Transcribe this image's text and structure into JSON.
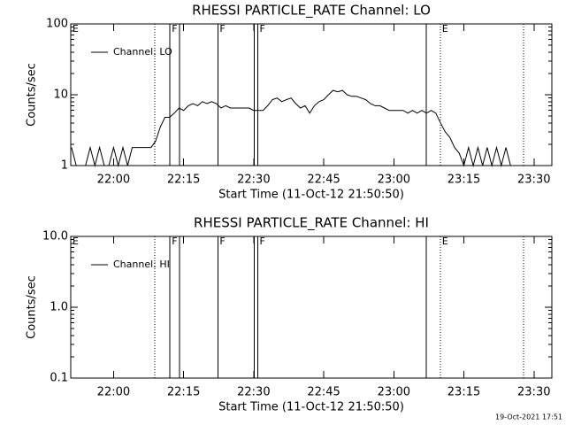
{
  "chart_data": [
    {
      "type": "line",
      "title": "RHESSI PARTICLE_RATE Channel: LO",
      "x_label": "Start Time (11-Oct-12 21:50:50)",
      "y_label": "Counts/sec",
      "log_y": true,
      "legend": "top-left",
      "xlim": [
        "21:50:50",
        "23:33:50"
      ],
      "xticks": [
        "22:00",
        "22:15",
        "22:30",
        "22:45",
        "23:00",
        "23:15",
        "23:30"
      ],
      "ylim": [
        1,
        100
      ],
      "yticks": [
        1,
        10,
        100
      ],
      "series": [
        {
          "name": "Channel: LO",
          "color": "#000000",
          "x": [
            "21:51",
            "21:52",
            "21:53",
            "21:54",
            "21:55",
            "21:56",
            "21:57",
            "21:58",
            "21:59",
            "22:00",
            "22:01",
            "22:02",
            "22:03",
            "22:04",
            "22:05",
            "22:06",
            "22:07",
            "22:08",
            "22:09",
            "22:10",
            "22:11",
            "22:12",
            "22:13",
            "22:14",
            "22:15",
            "22:16",
            "22:17",
            "22:18",
            "22:19",
            "22:20",
            "22:21",
            "22:22",
            "22:23",
            "22:24",
            "22:25",
            "22:26",
            "22:27",
            "22:28",
            "22:29",
            "22:30",
            "22:31",
            "22:32",
            "22:33",
            "22:34",
            "22:35",
            "22:36",
            "22:37",
            "22:38",
            "22:39",
            "22:40",
            "22:41",
            "22:42",
            "22:43",
            "22:44",
            "22:45",
            "22:46",
            "22:47",
            "22:48",
            "22:49",
            "22:50",
            "22:51",
            "22:52",
            "22:53",
            "22:54",
            "22:55",
            "22:56",
            "22:57",
            "22:58",
            "22:59",
            "23:00",
            "23:01",
            "23:02",
            "23:03",
            "23:04",
            "23:05",
            "23:06",
            "23:07",
            "23:08",
            "23:09",
            "23:10",
            "23:11",
            "23:12",
            "23:13",
            "23:14",
            "23:15",
            "23:16",
            "23:17",
            "23:18",
            "23:19",
            "23:20",
            "23:21",
            "23:22",
            "23:23",
            "23:24",
            "23:25"
          ],
          "values": [
            1.8,
            1,
            1,
            1,
            1.8,
            1,
            1.8,
            1,
            1,
            1.8,
            1,
            1.8,
            1,
            1.8,
            1.8,
            1.8,
            1.8,
            1.8,
            2.2,
            3.5,
            4.8,
            4.8,
            5.5,
            6.5,
            6,
            7,
            7.5,
            7,
            8,
            7.5,
            8,
            7.5,
            6.5,
            7,
            6.5,
            6.5,
            6.5,
            6.5,
            6.5,
            6,
            6,
            6,
            7,
            8.5,
            9,
            8,
            8.5,
            9,
            7.5,
            6.5,
            7,
            5.5,
            7,
            8,
            8.5,
            10,
            11.5,
            11,
            11.5,
            10,
            9.5,
            9.5,
            9,
            8.5,
            7.5,
            7,
            7,
            6.5,
            6,
            6,
            6,
            6,
            5.5,
            6,
            5.5,
            6,
            5.5,
            6,
            5.5,
            4,
            3,
            2.5,
            1.8,
            1.5,
            1,
            1.8,
            1,
            1.8,
            1,
            1.8,
            1,
            1.8,
            1,
            1.8,
            1
          ]
        }
      ],
      "events": [
        {
          "x": "22:08:52",
          "style": "dotted"
        },
        {
          "x": "22:12:05",
          "style": "solid",
          "label": "F"
        },
        {
          "x": "22:14:10",
          "style": "solid"
        },
        {
          "x": "22:22:20",
          "style": "solid",
          "label": "F"
        },
        {
          "x": "22:30:07",
          "style": "solid"
        },
        {
          "x": "22:30:52",
          "style": "solid",
          "label": "F"
        },
        {
          "x": "23:06:56",
          "style": "solid"
        },
        {
          "x": "23:09:56",
          "style": "dotted",
          "label": "E"
        },
        {
          "x": "23:27:48",
          "style": "dotted"
        },
        {
          "x": "21:50:50",
          "style": "solid",
          "label": "E"
        }
      ]
    },
    {
      "type": "line",
      "title": "RHESSI PARTICLE_RATE Channel: HI",
      "x_label": "Start Time (11-Oct-12 21:50:50)",
      "y_label": "Counts/sec",
      "log_y": true,
      "legend": "top-left",
      "xlim": [
        "21:50:50",
        "23:33:50"
      ],
      "xticks": [
        "22:00",
        "22:15",
        "22:30",
        "22:45",
        "23:00",
        "23:15",
        "23:30"
      ],
      "ylim": [
        0.1,
        10
      ],
      "yticks": [
        0.1,
        {
          "value": 1,
          "label": "1.0"
        },
        {
          "value": 10,
          "label": "10.0"
        }
      ],
      "series": [
        {
          "name": "Channel: HI",
          "color": "#000000",
          "x": [],
          "values": []
        }
      ],
      "events": [
        {
          "x": "22:08:52",
          "style": "dotted"
        },
        {
          "x": "22:12:05",
          "style": "solid",
          "label": "F"
        },
        {
          "x": "22:14:10",
          "style": "solid"
        },
        {
          "x": "22:22:20",
          "style": "solid",
          "label": "F"
        },
        {
          "x": "22:30:07",
          "style": "solid"
        },
        {
          "x": "22:30:52",
          "style": "solid",
          "label": "F"
        },
        {
          "x": "23:06:56",
          "style": "solid"
        },
        {
          "x": "23:09:56",
          "style": "dotted",
          "label": "E"
        },
        {
          "x": "23:27:48",
          "style": "dotted"
        },
        {
          "x": "21:50:50",
          "style": "solid",
          "label": "E"
        }
      ]
    }
  ],
  "footer": "19-Oct-2021 17:51"
}
